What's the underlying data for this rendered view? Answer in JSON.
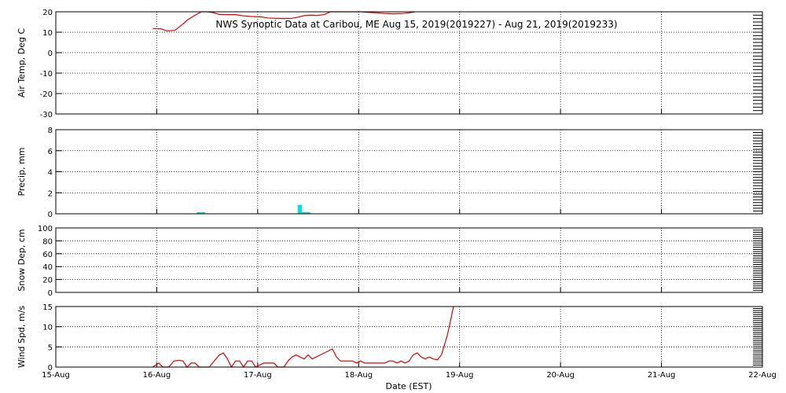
{
  "chart_data": {
    "title": "NWS Synoptic Data at Caribou, ME   Aug 15, 2019(2019227) - Aug 21, 2019(2019233)",
    "xlabel": "Date (EST)",
    "x_ticks": [
      "15-Aug",
      "16-Aug",
      "17-Aug",
      "18-Aug",
      "19-Aug",
      "20-Aug",
      "21-Aug",
      "22-Aug"
    ],
    "xlim": [
      0,
      7
    ],
    "grid": true,
    "panels": [
      {
        "id": "temp",
        "type": "line",
        "ylabel": "Air Temp, Deg C",
        "ylim": [
          -30,
          20
        ],
        "y_ticks": [
          "20",
          "10",
          "0",
          "-10",
          "-20",
          "-30"
        ],
        "y_tick_values": [
          20,
          10,
          0,
          -10,
          -20,
          -30
        ],
        "color": "#e00000",
        "points": [
          [
            0.96,
            11.8
          ],
          [
            1.04,
            11.7
          ],
          [
            1.1,
            10.6
          ],
          [
            1.18,
            10.9
          ],
          [
            1.25,
            13.6
          ],
          [
            1.31,
            16.2
          ],
          [
            1.38,
            18.3
          ],
          [
            1.44,
            20.1
          ],
          [
            1.5,
            20.7
          ],
          [
            1.56,
            19.6
          ],
          [
            1.62,
            18.7
          ],
          [
            1.7,
            18.6
          ],
          [
            1.78,
            18.6
          ],
          [
            1.86,
            18.0
          ],
          [
            1.94,
            17.7
          ],
          [
            2.03,
            17.5
          ],
          [
            2.1,
            17.0
          ],
          [
            2.18,
            16.8
          ],
          [
            2.26,
            16.7
          ],
          [
            2.34,
            16.8
          ],
          [
            2.4,
            17.4
          ],
          [
            2.46,
            18.1
          ],
          [
            2.52,
            18.3
          ],
          [
            2.59,
            18.2
          ],
          [
            2.66,
            18.6
          ],
          [
            2.72,
            20.0
          ],
          [
            2.79,
            20.8
          ],
          [
            2.84,
            21.0
          ],
          [
            2.9,
            20.8
          ],
          [
            2.96,
            20.3
          ],
          [
            3.02,
            20.1
          ],
          [
            3.1,
            19.7
          ],
          [
            3.18,
            19.5
          ],
          [
            3.26,
            19.2
          ],
          [
            3.34,
            19.0
          ],
          [
            3.42,
            19.1
          ],
          [
            3.5,
            19.5
          ],
          [
            3.56,
            20.1
          ]
        ]
      },
      {
        "id": "precip",
        "type": "bar",
        "ylabel": "Precip, mm",
        "ylim": [
          0,
          8
        ],
        "y_ticks": [
          "8",
          "6",
          "4",
          "2",
          "0"
        ],
        "y_tick_values": [
          8,
          6,
          4,
          2,
          0
        ],
        "color": "#00e0e0",
        "bars": [
          [
            1.417,
            0.15
          ],
          [
            1.458,
            0.15
          ],
          [
            2.417,
            0.85
          ],
          [
            2.458,
            0.15
          ],
          [
            2.5,
            0.15
          ]
        ]
      },
      {
        "id": "snow",
        "type": "line",
        "ylabel": "Snow Dep, cm",
        "ylim": [
          0,
          100
        ],
        "y_ticks": [
          "100",
          "80",
          "60",
          "40",
          "20",
          "0"
        ],
        "y_tick_values": [
          100,
          80,
          60,
          40,
          20,
          0
        ],
        "color": "#e00000",
        "points": []
      },
      {
        "id": "wind",
        "type": "line",
        "ylabel": "Wind Spd, m/s",
        "ylim": [
          0,
          15
        ],
        "y_ticks": [
          "15",
          "10",
          "5",
          "0"
        ],
        "y_tick_values": [
          15,
          10,
          5,
          0
        ],
        "color": "#e00000",
        "points": [
          [
            0.96,
            0.0
          ],
          [
            1.02,
            1.0
          ],
          [
            1.06,
            0.0
          ],
          [
            1.12,
            0.0
          ],
          [
            1.17,
            1.5
          ],
          [
            1.22,
            1.7
          ],
          [
            1.26,
            1.5
          ],
          [
            1.3,
            0.0
          ],
          [
            1.34,
            1.0
          ],
          [
            1.38,
            1.0
          ],
          [
            1.42,
            0.0
          ],
          [
            1.48,
            0.0
          ],
          [
            1.52,
            0.0
          ],
          [
            1.57,
            1.5
          ],
          [
            1.62,
            3.0
          ],
          [
            1.66,
            3.5
          ],
          [
            1.7,
            2.0
          ],
          [
            1.74,
            0.0
          ],
          [
            1.78,
            1.5
          ],
          [
            1.82,
            1.5
          ],
          [
            1.86,
            0.0
          ],
          [
            1.9,
            1.5
          ],
          [
            1.94,
            1.5
          ],
          [
            1.98,
            0.0
          ],
          [
            2.06,
            1.0
          ],
          [
            2.12,
            1.0
          ],
          [
            2.16,
            1.0
          ],
          [
            2.2,
            0.0
          ],
          [
            2.26,
            0.0
          ],
          [
            2.3,
            1.5
          ],
          [
            2.34,
            2.5
          ],
          [
            2.38,
            3.0
          ],
          [
            2.42,
            2.5
          ],
          [
            2.46,
            2.0
          ],
          [
            2.5,
            3.0
          ],
          [
            2.54,
            2.0
          ],
          [
            2.58,
            2.5
          ],
          [
            2.62,
            3.0
          ],
          [
            2.66,
            3.5
          ],
          [
            2.7,
            4.0
          ],
          [
            2.74,
            4.5
          ],
          [
            2.78,
            2.5
          ],
          [
            2.82,
            1.5
          ],
          [
            2.86,
            1.5
          ],
          [
            2.9,
            1.5
          ],
          [
            2.94,
            1.5
          ],
          [
            2.98,
            1.0
          ],
          [
            3.02,
            1.5
          ],
          [
            3.06,
            1.0
          ],
          [
            3.1,
            1.0
          ],
          [
            3.14,
            1.0
          ],
          [
            3.18,
            1.0
          ],
          [
            3.22,
            1.0
          ],
          [
            3.26,
            1.0
          ],
          [
            3.3,
            1.5
          ],
          [
            3.34,
            1.5
          ],
          [
            3.38,
            1.0
          ],
          [
            3.42,
            1.5
          ],
          [
            3.46,
            1.0
          ],
          [
            3.5,
            1.5
          ],
          [
            3.54,
            3.0
          ],
          [
            3.58,
            3.5
          ],
          [
            3.62,
            2.5
          ],
          [
            3.66,
            2.0
          ],
          [
            3.7,
            2.5
          ],
          [
            3.74,
            2.0
          ],
          [
            3.78,
            1.8
          ],
          [
            3.82,
            3.0
          ],
          [
            3.85,
            5.5
          ],
          [
            3.88,
            8.0
          ],
          [
            3.91,
            11.5
          ],
          [
            3.94,
            15.0
          ]
        ]
      }
    ]
  }
}
